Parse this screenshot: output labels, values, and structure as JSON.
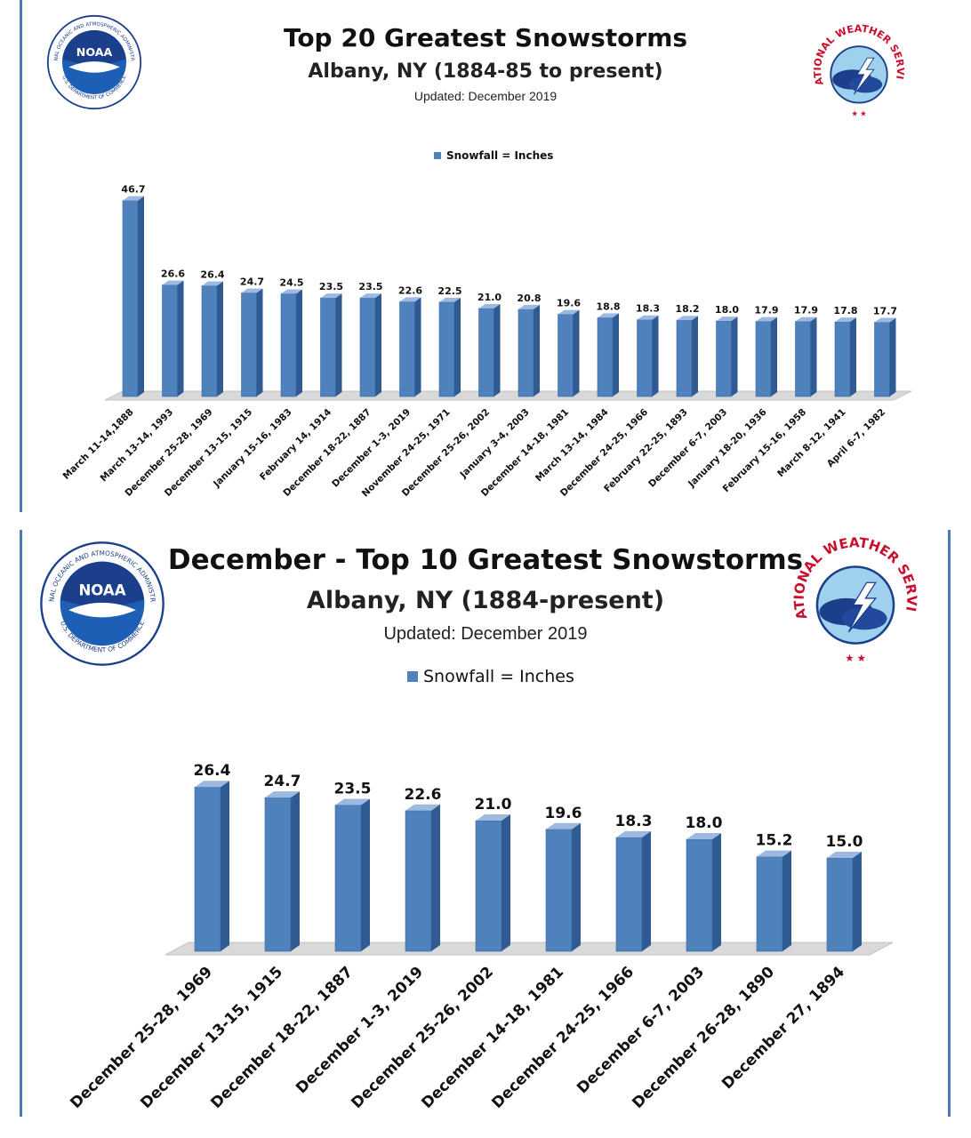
{
  "colors": {
    "bar_front": "#4f81bd",
    "bar_side": "#2f5a92",
    "bar_top": "#9db9e0",
    "floor": "#d9d9d9",
    "accent": "#4a7bbf"
  },
  "logos": {
    "noaa": {
      "text": "NOAA",
      "ring_top": "NATIONAL OCEANIC AND ATMOSPHERIC ADMINISTRATION",
      "ring_bottom": "U.S. DEPARTMENT OF COMMERCE"
    },
    "nws": {
      "ring_text": "NATIONAL WEATHER SERVICE"
    }
  },
  "charts": [
    {
      "title": "Top 20 Greatest Snowstorms",
      "subtitle": "Albany, NY (1884-85 to present)",
      "updated": "Updated:  December 2019",
      "legend": "Snowfall = Inches"
    },
    {
      "title": "December - Top 10 Greatest Snowstorms",
      "subtitle": "Albany, NY (1884-present)",
      "updated": "Updated: December 2019",
      "legend": "Snowfall = Inches"
    }
  ],
  "chart_data": [
    {
      "type": "bar",
      "title": "Top 20 Greatest Snowstorms",
      "subtitle": "Albany, NY (1884-85 to present)",
      "legend_position": "top-center",
      "grid": false,
      "ylim": [
        0,
        50
      ],
      "categories": [
        "March 11-14,1888",
        "March 13-14, 1993",
        "December 25-28, 1969",
        "December 13-15, 1915",
        "January 15-16, 1983",
        "February 14, 1914",
        "December 18-22, 1887",
        "December 1-3, 2019",
        "November 24-25, 1971",
        "December 25-26, 2002",
        "January 3-4, 2003",
        "December 14-18, 1981",
        "March 13-14, 1984",
        "December 24-25, 1966",
        "February 22-25, 1893",
        "December 6-7, 2003",
        "January 18-20, 1936",
        "February 15-16, 1958",
        "March 8-12, 1941",
        "April 6-7, 1982"
      ],
      "series": [
        {
          "name": "Snowfall = Inches",
          "values": [
            46.7,
            26.6,
            26.4,
            24.7,
            24.5,
            23.5,
            23.5,
            22.6,
            22.5,
            21.0,
            20.8,
            19.6,
            18.8,
            18.3,
            18.2,
            18.0,
            17.9,
            17.9,
            17.8,
            17.7
          ],
          "labels": [
            "46.7",
            "26.6",
            "26.4",
            "24.7",
            "24.5",
            "23.5",
            "23.5",
            "22.6",
            "22.5",
            "21.0",
            "20.8",
            "19.6",
            "18.8",
            "18.3",
            "18.2",
            "18.0",
            "17.9",
            "17.9",
            "17.8",
            "17.7"
          ]
        }
      ]
    },
    {
      "type": "bar",
      "title": "December - Top 10 Greatest Snowstorms",
      "subtitle": "Albany, NY (1884-present)",
      "legend_position": "top-center",
      "grid": false,
      "ylim": [
        0,
        30
      ],
      "categories": [
        "December 25-28, 1969",
        "December 13-15, 1915",
        "December 18-22, 1887",
        "December 1-3, 2019",
        "December 25-26, 2002",
        "December 14-18, 1981",
        "December 24-25, 1966",
        "December 6-7, 2003",
        "December 26-28, 1890",
        "December 27, 1894"
      ],
      "series": [
        {
          "name": "Snowfall = Inches",
          "values": [
            26.4,
            24.7,
            23.5,
            22.6,
            21.0,
            19.6,
            18.3,
            18.0,
            15.2,
            15.0
          ],
          "labels": [
            "26.4",
            "24.7",
            "23.5",
            "22.6",
            "21.0",
            "19.6",
            "18.3",
            "18.0",
            "15.2",
            "15.0"
          ]
        }
      ]
    }
  ]
}
